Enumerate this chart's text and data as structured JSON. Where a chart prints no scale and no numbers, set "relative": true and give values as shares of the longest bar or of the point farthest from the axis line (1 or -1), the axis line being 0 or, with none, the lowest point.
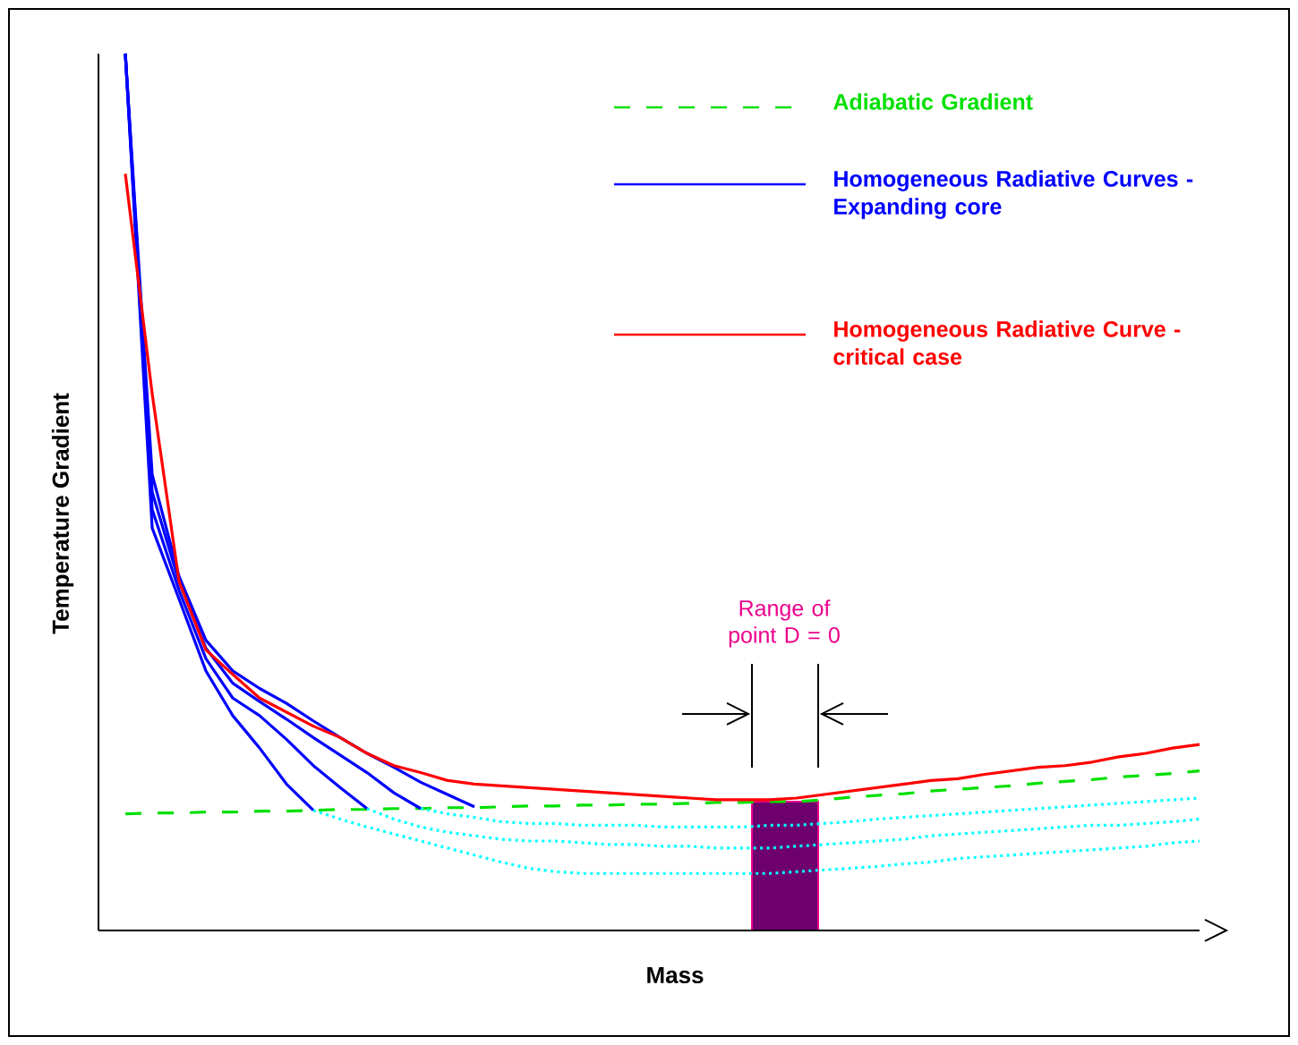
{
  "chart_data": {
    "type": "line",
    "relative": true,
    "xlabel": "Mass",
    "ylabel": "Temperature Gradient",
    "tick_labels": false,
    "legend": "top right",
    "categories": [
      null,
      null,
      null,
      null,
      null,
      null,
      null,
      null,
      null,
      null,
      null,
      null,
      null,
      null,
      null,
      null,
      null,
      null,
      null,
      null,
      null,
      null,
      null,
      null,
      null,
      null,
      null,
      null,
      null,
      null,
      null,
      null,
      null,
      null,
      null,
      null,
      null,
      null,
      null,
      null,
      null
    ],
    "series": [
      {
        "name": "Adiabatic Gradient",
        "color": "#00e000",
        "line_style": "dashed",
        "values": [
          0.133,
          0.134,
          0.134,
          0.135,
          0.135,
          0.136,
          0.136,
          0.137,
          0.138,
          0.138,
          0.139,
          0.139,
          0.14,
          0.14,
          0.141,
          0.142,
          0.142,
          0.143,
          0.143,
          0.144,
          0.144,
          0.145,
          0.146,
          0.146,
          0.147,
          0.147,
          0.149,
          0.152,
          0.154,
          0.156,
          0.159,
          0.161,
          0.163,
          0.165,
          0.168,
          0.17,
          0.172,
          0.175,
          0.177,
          0.179,
          0.182
        ]
      },
      {
        "name": "Homogeneous Radiative Curves - Expanding core",
        "color": "#0000ff",
        "line_style": "solid",
        "values": [
          1.0,
          0.459,
          0.378,
          0.296,
          0.245,
          0.208,
          0.167,
          0.137,
          null,
          null,
          null,
          null,
          null,
          null,
          null,
          null,
          null,
          null,
          null,
          null,
          null,
          null,
          null,
          null,
          null,
          null,
          null,
          null,
          null,
          null,
          null,
          null,
          null,
          null,
          null,
          null,
          null,
          null,
          null,
          null,
          null
        ]
      },
      {
        "color": "#0000ff",
        "line_style": "solid",
        "values": [
          1.0,
          0.48,
          0.388,
          0.31,
          0.265,
          0.245,
          0.218,
          0.188,
          0.163,
          0.139,
          null,
          null,
          null,
          null,
          null,
          null,
          null,
          null,
          null,
          null,
          null,
          null,
          null,
          null,
          null,
          null,
          null,
          null,
          null,
          null,
          null,
          null,
          null,
          null,
          null,
          null,
          null,
          null,
          null,
          null,
          null
        ]
      },
      {
        "color": "#0000ff",
        "line_style": "solid",
        "values": [
          1.0,
          0.5,
          0.398,
          0.322,
          0.282,
          0.261,
          0.241,
          0.22,
          0.2,
          0.18,
          0.157,
          0.139,
          null,
          null,
          null,
          null,
          null,
          null,
          null,
          null,
          null,
          null,
          null,
          null,
          null,
          null,
          null,
          null,
          null,
          null,
          null,
          null,
          null,
          null,
          null,
          null,
          null,
          null,
          null,
          null,
          null
        ]
      },
      {
        "color": "#0000ff",
        "line_style": "solid",
        "values": [
          1.0,
          0.52,
          0.404,
          0.331,
          0.296,
          0.276,
          0.259,
          0.239,
          0.22,
          0.202,
          0.186,
          0.169,
          0.155,
          0.141,
          null,
          null,
          null,
          null,
          null,
          null,
          null,
          null,
          null,
          null,
          null,
          null,
          null,
          null,
          null,
          null,
          null,
          null,
          null,
          null,
          null,
          null,
          null,
          null,
          null,
          null,
          null
        ]
      },
      {
        "color": "#00ffff",
        "line_style": "dotted",
        "values": [
          null,
          null,
          null,
          null,
          null,
          null,
          null,
          0.137,
          0.127,
          0.118,
          0.11,
          0.102,
          0.094,
          0.086,
          0.078,
          0.071,
          0.067,
          0.065,
          0.065,
          0.065,
          0.065,
          0.065,
          0.065,
          0.065,
          0.065,
          0.067,
          0.069,
          0.071,
          0.073,
          0.076,
          0.078,
          0.082,
          0.084,
          0.086,
          0.088,
          0.09,
          0.092,
          0.094,
          0.096,
          0.1,
          0.102
        ]
      },
      {
        "color": "#00ffff",
        "line_style": "dotted",
        "values": [
          null,
          null,
          null,
          null,
          null,
          null,
          null,
          null,
          null,
          0.139,
          0.127,
          0.118,
          0.112,
          0.108,
          0.104,
          0.102,
          0.102,
          0.1,
          0.098,
          0.098,
          0.096,
          0.096,
          0.094,
          0.094,
          0.094,
          0.096,
          0.098,
          0.1,
          0.102,
          0.104,
          0.108,
          0.11,
          0.112,
          0.114,
          0.116,
          0.118,
          0.12,
          0.12,
          0.122,
          0.124,
          0.127
        ]
      },
      {
        "color": "#00ffff",
        "line_style": "dotted",
        "values": [
          null,
          null,
          null,
          null,
          null,
          null,
          null,
          null,
          null,
          null,
          null,
          0.139,
          0.133,
          0.129,
          0.124,
          0.122,
          0.122,
          0.12,
          0.12,
          0.12,
          0.118,
          0.118,
          0.118,
          0.118,
          0.12,
          0.12,
          0.122,
          0.124,
          0.127,
          0.129,
          0.131,
          0.133,
          0.135,
          0.137,
          0.139,
          0.141,
          0.143,
          0.145,
          0.147,
          0.149,
          0.151
        ]
      },
      {
        "name": "Homogeneous Radiative Curve - critical case",
        "color": "#ff0000",
        "line_style": "solid",
        "values": [
          0.863,
          0.612,
          0.398,
          0.32,
          0.292,
          0.265,
          0.249,
          0.233,
          0.22,
          0.202,
          0.188,
          0.18,
          0.171,
          0.167,
          0.165,
          0.163,
          0.161,
          0.159,
          0.157,
          0.155,
          0.153,
          0.151,
          0.149,
          0.149,
          0.149,
          0.151,
          0.155,
          0.159,
          0.163,
          0.167,
          0.171,
          0.173,
          0.178,
          0.182,
          0.186,
          0.188,
          0.192,
          0.198,
          0.202,
          0.208,
          0.212
        ]
      }
    ],
    "annotations": [
      "Range of point D = 0"
    ]
  }
}
